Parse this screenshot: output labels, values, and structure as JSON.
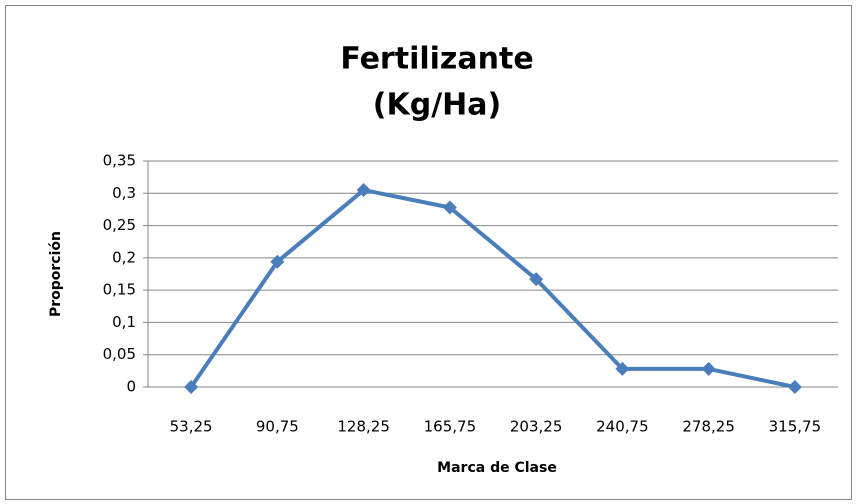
{
  "chart_data": {
    "type": "line",
    "title": [
      "Fertilizante",
      "(Kg/Ha)"
    ],
    "xlabel": "Marca de Clase",
    "ylabel": "Proporción",
    "categories": [
      "53,25",
      "90,75",
      "128,25",
      "165,75",
      "203,25",
      "240,75",
      "278,25",
      "315,75"
    ],
    "series": [
      {
        "color": "#4a7ebb",
        "values": [
          0,
          0.194,
          0.305,
          0.278,
          0.167,
          0.028,
          0.028,
          0
        ]
      }
    ],
    "ylim": [
      0,
      0.35
    ],
    "yticks": [
      0,
      {
        "value": 0.05,
        "label": "0,05"
      },
      {
        "value": 0.1,
        "label": "0,1"
      },
      {
        "value": 0.15,
        "label": "0,15"
      },
      {
        "value": 0.2,
        "label": "0,2"
      },
      {
        "value": 0.25,
        "label": "0,25"
      },
      {
        "value": 0.3,
        "label": "0,3"
      },
      {
        "value": 0.35,
        "label": "0,35"
      }
    ],
    "grid": true
  }
}
